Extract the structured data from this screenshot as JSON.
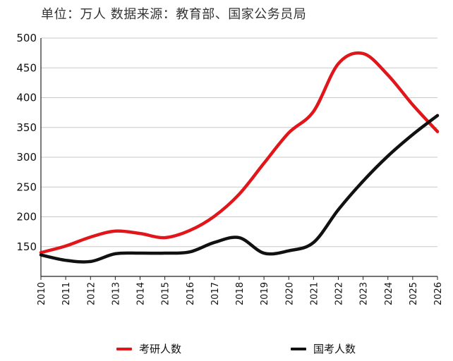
{
  "chart_data": {
    "type": "line",
    "title": "单位：万人  数据来源：教育部、国家公务员局",
    "xlabel": "",
    "ylabel": "",
    "x": [
      2010,
      2011,
      2012,
      2013,
      2014,
      2015,
      2016,
      2017,
      2018,
      2019,
      2020,
      2021,
      2022,
      2023,
      2024,
      2025,
      2026
    ],
    "x_ticks": [
      "2010",
      "2011",
      "2012",
      "2013",
      "2014",
      "2015",
      "2016",
      "2017",
      "2018",
      "2019",
      "2020",
      "2021",
      "2022",
      "2023",
      "2024",
      "2025",
      "2026"
    ],
    "y_ticks": [
      "150",
      "200",
      "250",
      "300",
      "350",
      "400",
      "450",
      "500"
    ],
    "xlim": [
      2010,
      2026
    ],
    "ylim": [
      100,
      500
    ],
    "grid": "horizontal",
    "legend": "bottom",
    "series": [
      {
        "name": "考研人数",
        "color": "#e0161b",
        "values": [
          140,
          151,
          166,
          176,
          172,
          165,
          177,
          201,
          238,
          290,
          341,
          377,
          457,
          474,
          438,
          388,
          343
        ]
      },
      {
        "name": "国考人数",
        "color": "#111111",
        "values": [
          136,
          127,
          125,
          138,
          139,
          139,
          141,
          157,
          165,
          139,
          143,
          157,
          212,
          260,
          302,
          338,
          370
        ]
      }
    ]
  }
}
